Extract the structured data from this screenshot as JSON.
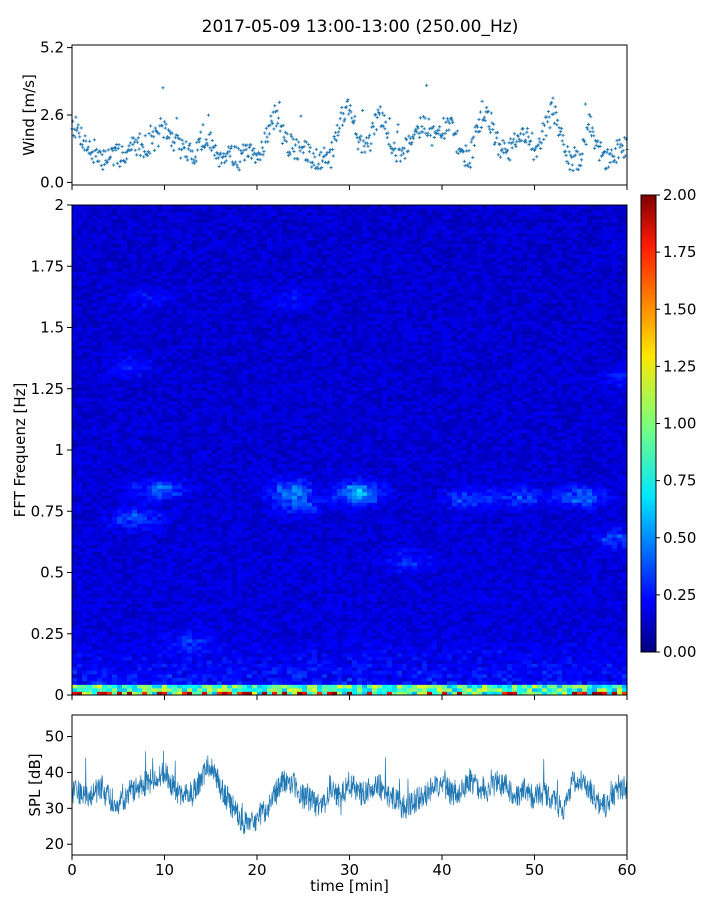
{
  "figure": {
    "title": "2017-05-09 13:00-13:00 (250.00_Hz)"
  },
  "chart_data": [
    {
      "type": "scatter",
      "name": "wind",
      "ylabel": "Wind [m/s]",
      "ylim": [
        -0.1,
        5.3
      ],
      "xlim": [
        0,
        60
      ],
      "yticks": [
        "0.0",
        "2.6",
        "5.2"
      ],
      "yticks_values": [
        0,
        2.6,
        5.2
      ],
      "marker": "plus",
      "color": "#1f77b4",
      "x": [
        0,
        1,
        2,
        3,
        4,
        5,
        6,
        7,
        8,
        9,
        10,
        11,
        12,
        13,
        14,
        15,
        16,
        17,
        18,
        19,
        20,
        21,
        22,
        23,
        24,
        25,
        26,
        27,
        28,
        29,
        30,
        31,
        32,
        33,
        34,
        35,
        36,
        37,
        38,
        39,
        40,
        41,
        42,
        43,
        44,
        45,
        46,
        47,
        48,
        49,
        50,
        51,
        52,
        53,
        54,
        55,
        56,
        57,
        58,
        59,
        60
      ],
      "y": [
        2.3,
        1.8,
        1.2,
        0.8,
        1.1,
        1.0,
        1.2,
        1.5,
        1.4,
        1.7,
        2.0,
        1.6,
        1.3,
        1.0,
        1.6,
        1.5,
        1.0,
        1.2,
        0.9,
        1.1,
        0.9,
        1.8,
        2.6,
        1.6,
        1.3,
        1.2,
        1.0,
        0.9,
        1.0,
        2.5,
        3.0,
        1.6,
        1.2,
        2.6,
        2.2,
        1.0,
        1.3,
        2.0,
        2.3,
        1.8,
        2.0,
        2.2,
        1.2,
        0.9,
        2.3,
        2.6,
        1.5,
        1.0,
        1.6,
        1.8,
        1.2,
        2.0,
        2.8,
        1.6,
        0.6,
        1.0,
        2.2,
        1.2,
        0.8,
        1.3,
        1.4
      ]
    },
    {
      "type": "heatmap",
      "name": "spectrogram",
      "ylabel": "FFT Frequenz [Hz]",
      "xlim": [
        0,
        60
      ],
      "ylim": [
        0,
        2
      ],
      "yticks": [
        "0",
        "0.25",
        "0.5",
        "0.75",
        "1",
        "1.25",
        "1.5",
        "1.75",
        "2"
      ],
      "yticks_values": [
        0,
        0.25,
        0.5,
        0.75,
        1,
        1.25,
        1.5,
        1.75,
        2
      ],
      "colormap": "jet",
      "colorbar": {
        "range": [
          0,
          2
        ],
        "ticks": [
          "0.00",
          "0.25",
          "0.50",
          "0.75",
          "1.00",
          "1.25",
          "1.50",
          "1.75",
          "2.00"
        ],
        "ticks_values": [
          0,
          0.25,
          0.5,
          0.75,
          1,
          1.25,
          1.5,
          1.75,
          2
        ]
      }
    },
    {
      "type": "line",
      "name": "spl",
      "ylabel": "SPL [dB]",
      "xlabel": "time [min]",
      "ylim": [
        17,
        56
      ],
      "xlim": [
        0,
        60
      ],
      "yticks": [
        "20",
        "30",
        "40",
        "50"
      ],
      "yticks_values": [
        20,
        30,
        40,
        50
      ],
      "xticks": [
        "0",
        "10",
        "20",
        "30",
        "40",
        "50",
        "60"
      ],
      "xticks_values": [
        0,
        10,
        20,
        30,
        40,
        50,
        60
      ],
      "color": "#1f77b4",
      "x": [
        0,
        1,
        2,
        3,
        4,
        5,
        6,
        7,
        8,
        9,
        10,
        11,
        12,
        13,
        14,
        15,
        16,
        17,
        18,
        19,
        20,
        21,
        22,
        23,
        24,
        25,
        26,
        27,
        28,
        29,
        30,
        31,
        32,
        33,
        34,
        35,
        36,
        37,
        38,
        39,
        40,
        41,
        42,
        43,
        44,
        45,
        46,
        47,
        48,
        49,
        50,
        51,
        52,
        53,
        54,
        55,
        56,
        57,
        58,
        59,
        60
      ],
      "y": [
        35,
        34,
        33,
        36,
        33,
        31,
        34,
        36,
        37,
        38,
        40,
        36,
        33,
        34,
        38,
        43,
        36,
        32,
        28,
        25,
        27,
        30,
        34,
        38,
        37,
        33,
        32,
        30,
        36,
        33,
        37,
        34,
        35,
        37,
        34,
        32,
        30,
        32,
        33,
        36,
        37,
        34,
        35,
        38,
        36,
        35,
        37,
        36,
        33,
        35,
        33,
        34,
        33,
        29,
        37,
        38,
        35,
        31,
        31,
        36,
        36
      ]
    }
  ]
}
